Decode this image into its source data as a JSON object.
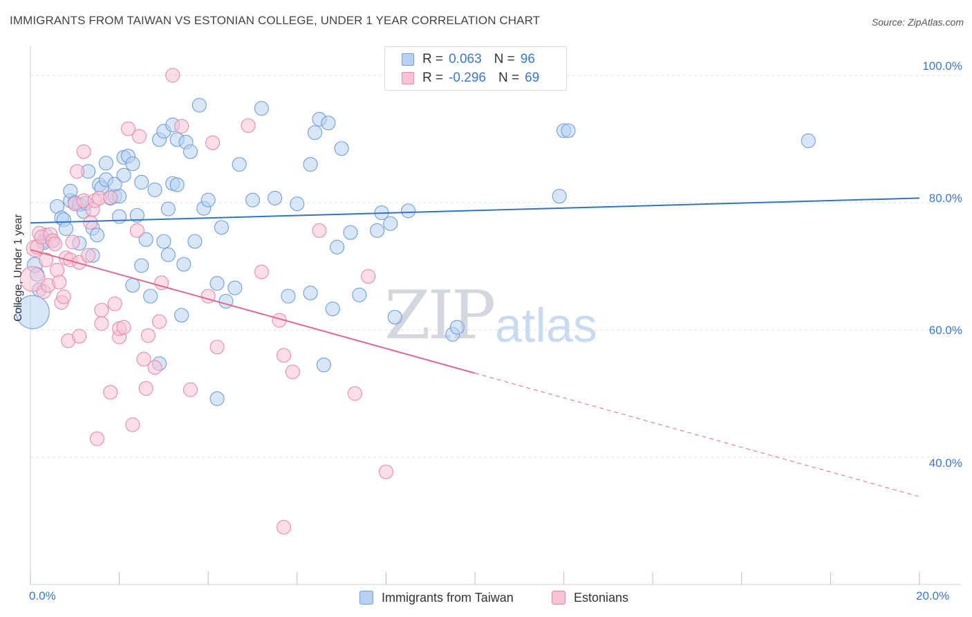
{
  "title": "IMMIGRANTS FROM TAIWAN VS ESTONIAN COLLEGE, UNDER 1 YEAR CORRELATION CHART",
  "source": "Source: ZipAtlas.com",
  "watermark": {
    "zip": "ZIP",
    "atlas": "atlas"
  },
  "legend": {
    "rows": [
      {
        "r_label": "R =",
        "r_value": "0.063",
        "n_label": "N =",
        "n_value": "96"
      },
      {
        "r_label": "R =",
        "r_value": "-0.296",
        "n_label": "N =",
        "n_value": "69"
      }
    ]
  },
  "bottom_legend": [
    "Immigrants from Taiwan",
    "Estonians"
  ],
  "colors": {
    "blue_fill": "#b8d1f2",
    "blue_stroke": "#6d9ee0",
    "blue_line": "#2f74c8",
    "pink_fill": "#f7c3d3",
    "pink_stroke": "#e88aaa",
    "pink_line": "#e06890",
    "tick_text": "#3a78c9",
    "grid": "#dcdcdc"
  },
  "chart_data": {
    "type": "scatter",
    "title": "IMMIGRANTS FROM TAIWAN VS ESTONIAN COLLEGE, UNDER 1 YEAR CORRELATION CHART",
    "xlabel": "",
    "ylabel": "College, Under 1 year",
    "xlim": [
      0,
      20
    ],
    "ylim": [
      20,
      104
    ],
    "x_ticks": [
      "0.0%",
      "20.0%"
    ],
    "y_ticks": [
      "40.0%",
      "60.0%",
      "80.0%",
      "100.0%"
    ],
    "y_tick_values": [
      40,
      60,
      80,
      100
    ],
    "grid": true,
    "legend_placement": "top-center",
    "series": [
      {
        "name": "Immigrants from Taiwan",
        "r": 0.063,
        "n": 96,
        "trend": {
          "x0": 0,
          "y0": 76.8,
          "x1": 20,
          "y1": 80.7,
          "dashed_from": null
        },
        "points": [
          [
            0.05,
            62.8,
            24
          ],
          [
            0.1,
            70.2,
            11
          ],
          [
            0.2,
            66.3,
            10
          ],
          [
            0.15,
            68.7,
            10
          ],
          [
            0.3,
            74.0,
            10
          ],
          [
            0.3,
            73.7,
            10
          ],
          [
            0.35,
            75.0,
            9
          ],
          [
            0.5,
            74.0,
            10
          ],
          [
            0.6,
            79.4,
            10
          ],
          [
            0.7,
            77.6,
            10
          ],
          [
            0.75,
            77.3,
            10
          ],
          [
            0.8,
            75.9,
            10
          ],
          [
            0.9,
            80.3,
            10
          ],
          [
            0.9,
            81.8,
            10
          ],
          [
            1.0,
            80.0,
            10
          ],
          [
            1.1,
            79.7,
            10
          ],
          [
            1.1,
            73.6,
            10
          ],
          [
            1.2,
            78.6,
            10
          ],
          [
            1.25,
            79.9,
            10
          ],
          [
            1.3,
            84.9,
            10
          ],
          [
            1.4,
            71.7,
            10
          ],
          [
            1.4,
            76.0,
            10
          ],
          [
            1.5,
            74.9,
            10
          ],
          [
            1.55,
            82.8,
            10
          ],
          [
            1.6,
            82.3,
            10
          ],
          [
            1.7,
            83.6,
            10
          ],
          [
            1.7,
            86.2,
            10
          ],
          [
            1.8,
            80.7,
            10
          ],
          [
            1.9,
            81.0,
            10
          ],
          [
            1.9,
            82.9,
            10
          ],
          [
            2.0,
            81.0,
            10
          ],
          [
            2.0,
            77.8,
            10
          ],
          [
            2.1,
            84.3,
            10
          ],
          [
            2.1,
            87.1,
            10
          ],
          [
            2.2,
            87.3,
            10
          ],
          [
            2.3,
            86.1,
            10
          ],
          [
            2.3,
            67.0,
            10
          ],
          [
            2.4,
            78.0,
            10
          ],
          [
            2.5,
            83.2,
            10
          ],
          [
            2.5,
            70.1,
            10
          ],
          [
            2.6,
            74.2,
            10
          ],
          [
            2.7,
            65.3,
            10
          ],
          [
            2.8,
            82.0,
            10
          ],
          [
            2.9,
            89.9,
            10
          ],
          [
            2.9,
            54.7,
            10
          ],
          [
            3.0,
            91.2,
            10
          ],
          [
            3.0,
            73.9,
            10
          ],
          [
            3.1,
            71.8,
            10
          ],
          [
            3.1,
            79.0,
            10
          ],
          [
            3.2,
            83.0,
            10
          ],
          [
            3.2,
            92.2,
            10
          ],
          [
            3.3,
            89.9,
            10
          ],
          [
            3.3,
            82.8,
            10
          ],
          [
            3.4,
            62.3,
            10
          ],
          [
            3.45,
            70.3,
            10
          ],
          [
            3.5,
            89.5,
            10
          ],
          [
            3.6,
            88.0,
            10
          ],
          [
            3.7,
            73.9,
            10
          ],
          [
            3.8,
            95.3,
            10
          ],
          [
            3.9,
            79.1,
            10
          ],
          [
            4.0,
            80.4,
            10
          ],
          [
            4.2,
            67.3,
            10
          ],
          [
            4.3,
            76.1,
            10
          ],
          [
            4.4,
            64.5,
            10
          ],
          [
            4.6,
            66.6,
            10
          ],
          [
            4.7,
            86.0,
            10
          ],
          [
            4.2,
            49.2,
            10
          ],
          [
            5.0,
            80.4,
            10
          ],
          [
            5.2,
            94.8,
            10
          ],
          [
            5.5,
            80.7,
            10
          ],
          [
            5.8,
            65.3,
            10
          ],
          [
            6.0,
            79.8,
            10
          ],
          [
            6.3,
            86.0,
            10
          ],
          [
            6.3,
            65.8,
            10
          ],
          [
            6.4,
            91.0,
            10
          ],
          [
            6.5,
            93.1,
            10
          ],
          [
            6.6,
            54.5,
            10
          ],
          [
            6.7,
            92.5,
            10
          ],
          [
            6.8,
            63.3,
            10
          ],
          [
            6.9,
            73.0,
            10
          ],
          [
            7.0,
            88.5,
            10
          ],
          [
            7.2,
            75.3,
            10
          ],
          [
            7.4,
            65.5,
            10
          ],
          [
            7.8,
            75.6,
            10
          ],
          [
            7.9,
            78.4,
            10
          ],
          [
            8.1,
            76.7,
            10
          ],
          [
            8.2,
            62.0,
            10
          ],
          [
            8.5,
            78.7,
            10
          ],
          [
            9.5,
            59.3,
            10
          ],
          [
            9.6,
            60.4,
            10
          ],
          [
            11.9,
            81.0,
            10
          ],
          [
            12.0,
            91.3,
            10
          ],
          [
            12.1,
            91.3,
            10
          ],
          [
            17.5,
            89.7,
            10
          ]
        ]
      },
      {
        "name": "Estonians",
        "r": -0.296,
        "n": 69,
        "trend": {
          "x0": 0,
          "y0": 72.6,
          "x1": 20,
          "y1": 33.8,
          "dashed_from": 10.0
        },
        "points": [
          [
            0.05,
            68.0,
            18
          ],
          [
            0.1,
            72.8,
            12
          ],
          [
            0.15,
            73.0,
            10
          ],
          [
            0.2,
            75.2,
            10
          ],
          [
            0.25,
            74.6,
            10
          ],
          [
            0.3,
            66.0,
            10
          ],
          [
            0.35,
            71.0,
            10
          ],
          [
            0.4,
            67.0,
            10
          ],
          [
            0.45,
            75.0,
            10
          ],
          [
            0.5,
            74.0,
            10
          ],
          [
            0.55,
            73.5,
            10
          ],
          [
            0.6,
            69.4,
            10
          ],
          [
            0.65,
            67.5,
            10
          ],
          [
            0.7,
            64.3,
            10
          ],
          [
            0.75,
            65.2,
            10
          ],
          [
            0.8,
            71.3,
            10
          ],
          [
            0.85,
            58.3,
            10
          ],
          [
            0.9,
            71.0,
            10
          ],
          [
            0.95,
            73.8,
            10
          ],
          [
            1.0,
            79.8,
            10
          ],
          [
            1.05,
            84.9,
            10
          ],
          [
            1.1,
            70.6,
            10
          ],
          [
            1.1,
            59.0,
            10
          ],
          [
            1.2,
            88.0,
            10
          ],
          [
            1.2,
            80.3,
            10
          ],
          [
            1.3,
            71.7,
            10
          ],
          [
            1.35,
            76.9,
            10
          ],
          [
            1.4,
            78.9,
            10
          ],
          [
            1.45,
            80.3,
            10
          ],
          [
            1.5,
            42.9,
            10
          ],
          [
            1.55,
            80.7,
            10
          ],
          [
            1.6,
            63.1,
            10
          ],
          [
            1.6,
            61.0,
            10
          ],
          [
            1.8,
            80.8,
            10
          ],
          [
            1.8,
            50.2,
            10
          ],
          [
            1.9,
            64.1,
            10
          ],
          [
            2.0,
            58.9,
            10
          ],
          [
            2.0,
            60.2,
            10
          ],
          [
            2.1,
            60.4,
            10
          ],
          [
            2.2,
            91.6,
            10
          ],
          [
            2.3,
            45.1,
            10
          ],
          [
            2.4,
            75.6,
            10
          ],
          [
            2.45,
            90.4,
            10
          ],
          [
            2.55,
            55.4,
            10
          ],
          [
            2.6,
            50.8,
            10
          ],
          [
            2.65,
            59.1,
            10
          ],
          [
            2.8,
            54.1,
            10
          ],
          [
            2.9,
            61.3,
            10
          ],
          [
            2.95,
            67.4,
            10
          ],
          [
            3.2,
            100.0,
            10
          ],
          [
            3.4,
            92.0,
            10
          ],
          [
            3.6,
            50.6,
            10
          ],
          [
            4.0,
            65.3,
            10
          ],
          [
            4.1,
            89.4,
            10
          ],
          [
            4.2,
            57.3,
            10
          ],
          [
            4.9,
            92.1,
            10
          ],
          [
            5.2,
            69.1,
            10
          ],
          [
            5.6,
            61.5,
            10
          ],
          [
            5.7,
            29.0,
            10
          ],
          [
            5.7,
            56.0,
            10
          ],
          [
            5.9,
            53.4,
            10
          ],
          [
            6.5,
            75.6,
            10
          ],
          [
            7.3,
            50.0,
            10
          ],
          [
            7.6,
            68.4,
            10
          ],
          [
            8.0,
            37.7,
            10
          ]
        ]
      }
    ]
  }
}
